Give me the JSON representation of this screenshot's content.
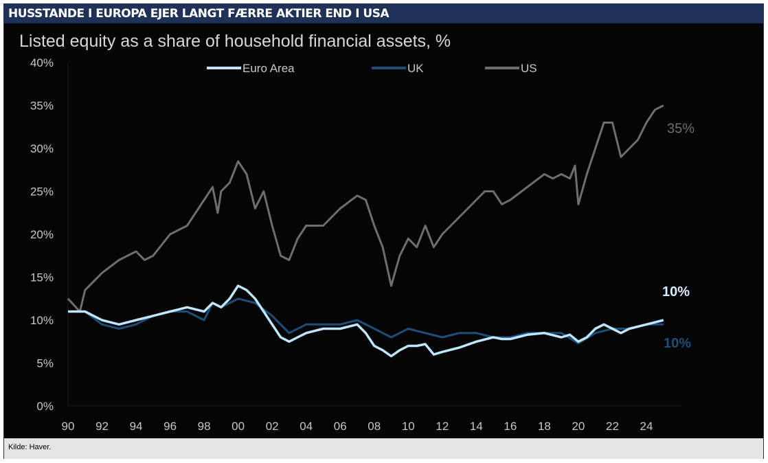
{
  "header": {
    "title": "HUSSTANDE I EUROPA EJER LANGT FÆRRE AKTIER END I USA"
  },
  "footer": {
    "source": "Kilde:  Haver."
  },
  "chart_data": {
    "type": "line",
    "title": "Listed equity as a share of household financial assets, %",
    "xlabel": "",
    "ylabel": "",
    "ylim": [
      0,
      40
    ],
    "xlim": [
      1990,
      2025
    ],
    "yticks": [
      "0%",
      "5%",
      "10%",
      "15%",
      "20%",
      "25%",
      "30%",
      "35%",
      "40%"
    ],
    "xticks": [
      "90",
      "92",
      "94",
      "96",
      "98",
      "00",
      "02",
      "04",
      "06",
      "08",
      "10",
      "12",
      "14",
      "16",
      "18",
      "20",
      "22",
      "24"
    ],
    "legend": "top-center",
    "annotations": [
      {
        "text": "35%",
        "series": "US"
      },
      {
        "text": "10%",
        "series": "Euro Area"
      },
      {
        "text": "10%",
        "series": "UK"
      }
    ],
    "series": [
      {
        "name": "Euro Area",
        "color": "#bfe6ff",
        "x": [
          1990,
          1991,
          1992,
          1993,
          1994,
          1995,
          1996,
          1997,
          1998,
          1998.5,
          1999,
          1999.5,
          2000,
          2000.5,
          2001,
          2001.5,
          2002,
          2002.5,
          2003,
          2003.5,
          2004,
          2005,
          2006,
          2007,
          2007.5,
          2008,
          2008.5,
          2009,
          2009.5,
          2010,
          2010.5,
          2011,
          2011.5,
          2012,
          2013,
          2014,
          2015,
          2015.5,
          2016,
          2017,
          2018,
          2019,
          2019.5,
          2020,
          2020.5,
          2021,
          2021.5,
          2022,
          2022.5,
          2023,
          2024,
          2025
        ],
        "y": [
          11,
          11,
          10,
          9.5,
          10,
          10.5,
          11,
          11.5,
          11,
          12,
          11.5,
          12.5,
          14,
          13.5,
          12.5,
          11,
          9.5,
          8,
          7.5,
          8,
          8.5,
          9,
          9,
          9.5,
          8.5,
          7,
          6.5,
          5.8,
          6.5,
          7,
          7,
          7.2,
          6,
          6.3,
          6.8,
          7.5,
          8,
          7.8,
          7.8,
          8.3,
          8.5,
          8,
          8.3,
          7.5,
          8,
          9,
          9.5,
          9,
          8.5,
          9,
          9.5,
          10
        ]
      },
      {
        "name": "UK",
        "color": "#1e4d78",
        "x": [
          1990,
          1991,
          1992,
          1993,
          1994,
          1995,
          1996,
          1997,
          1998,
          1998.5,
          1999,
          2000,
          2001,
          2002,
          2003,
          2004,
          2005,
          2006,
          2007,
          2008,
          2009,
          2010,
          2011,
          2012,
          2013,
          2014,
          2015,
          2016,
          2017,
          2018,
          2019,
          2020,
          2021,
          2022,
          2023,
          2024,
          2025
        ],
        "y": [
          11,
          11,
          9.5,
          9,
          9.5,
          10.5,
          11,
          11,
          10,
          12,
          11.5,
          12.5,
          12,
          10.5,
          8.5,
          9.5,
          9.5,
          9.5,
          10,
          9,
          8,
          9,
          8.5,
          8,
          8.5,
          8.5,
          8,
          8,
          8.5,
          8.5,
          8.5,
          7.3,
          8.5,
          9,
          9,
          9.5,
          9.5
        ]
      },
      {
        "name": "US",
        "color": "#6e6e6e",
        "x": [
          1990,
          1990.7,
          1991,
          1992,
          1993,
          1994,
          1994.5,
          1995,
          1996,
          1997,
          1998,
          1998.5,
          1998.8,
          1999,
          1999.5,
          2000,
          2000.5,
          2001,
          2001.5,
          2002,
          2002.5,
          2003,
          2003.5,
          2004,
          2005,
          2006,
          2007,
          2007.5,
          2008,
          2008.5,
          2009,
          2009.5,
          2010,
          2010.5,
          2011,
          2011.5,
          2012,
          2013,
          2014,
          2014.5,
          2015,
          2015.5,
          2016,
          2017,
          2018,
          2018.5,
          2019,
          2019.5,
          2019.8,
          2020,
          2020.5,
          2021,
          2021.5,
          2022,
          2022.5,
          2023,
          2023.5,
          2024,
          2024.5,
          2025
        ],
        "y": [
          12.5,
          11,
          13.5,
          15.5,
          17,
          18,
          17,
          17.5,
          20,
          21,
          24,
          25.5,
          22.5,
          25,
          26,
          28.5,
          27,
          23,
          25,
          21,
          17.5,
          17,
          19.5,
          21,
          21,
          23,
          24.5,
          24,
          21,
          18.5,
          14,
          17.5,
          19.5,
          18.5,
          21,
          18.5,
          20,
          22,
          24,
          25,
          25,
          23.5,
          24,
          25.5,
          27,
          26.5,
          27,
          26.5,
          28,
          23.5,
          27,
          30,
          33,
          33,
          29,
          30,
          31,
          33,
          34.5,
          35
        ]
      }
    ]
  }
}
